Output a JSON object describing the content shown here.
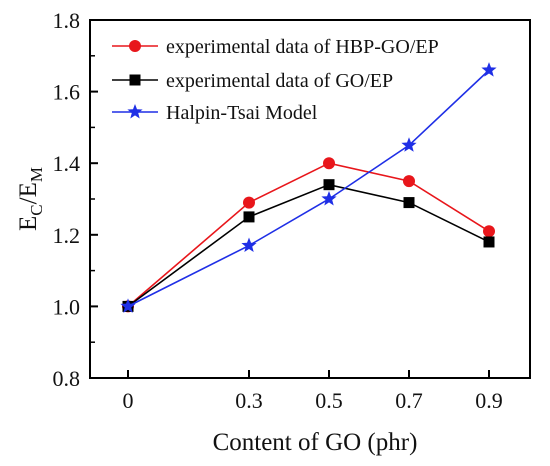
{
  "chart_data": {
    "type": "line",
    "title": "",
    "xlabel": "Content of GO (phr)",
    "ylabel_main": "E",
    "ylabel_sub1": "C",
    "ylabel_slash": "/E",
    "ylabel_sub2": "M",
    "x_categories": [
      "0",
      "0.3",
      "0.5",
      "0.7",
      "0.9"
    ],
    "x_values": [
      0,
      0.3,
      0.5,
      0.7,
      0.9
    ],
    "ylim": [
      0.8,
      1.8
    ],
    "y_ticks": [
      0.8,
      1.0,
      1.2,
      1.4,
      1.6,
      1.8
    ],
    "y_tick_labels": [
      "0.8",
      "1.0",
      "1.2",
      "1.4",
      "1.6",
      "1.8"
    ],
    "grid": false,
    "legend_position": "top-left",
    "series": [
      {
        "name": "experimental data of HBP-GO/EP",
        "values": [
          1.0,
          1.29,
          1.4,
          1.35,
          1.21
        ],
        "color": "#e8161b",
        "marker": "circle"
      },
      {
        "name": "experimental data of GO/EP",
        "values": [
          1.0,
          1.25,
          1.34,
          1.29,
          1.18
        ],
        "color": "#000000",
        "marker": "square"
      },
      {
        "name": "Halpin-Tsai Model",
        "values": [
          1.0,
          1.17,
          1.3,
          1.45,
          1.66
        ],
        "color": "#1f2fe6",
        "marker": "star"
      }
    ]
  }
}
